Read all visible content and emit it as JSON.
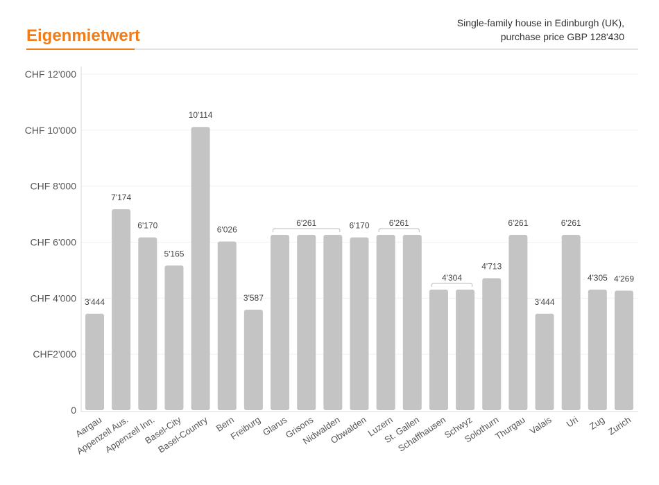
{
  "header": {
    "title": "Eigenmietwert",
    "subtitle_line1": "Single-family house in Edinburgh (UK),",
    "subtitle_line2": "purchase price GBP 128'430"
  },
  "colors": {
    "accent": "#f07d1a",
    "bar": "#c4c4c4",
    "rule": "#d8d8d8"
  },
  "chart_data": {
    "type": "bar",
    "title": "",
    "xlabel": "",
    "ylabel": "",
    "ylim": [
      0,
      12000
    ],
    "grid": true,
    "yticks": [
      {
        "value": 0,
        "label": "0"
      },
      {
        "value": 2000,
        "label": "CHF2'000"
      },
      {
        "value": 4000,
        "label": "CHF 4'000"
      },
      {
        "value": 6000,
        "label": "CHF 6'000"
      },
      {
        "value": 8000,
        "label": "CHF 8'000"
      },
      {
        "value": 10000,
        "label": "CHF 10'000"
      },
      {
        "value": 12000,
        "label": "CHF 12'000"
      }
    ],
    "categories": [
      "Aargau",
      "Appenzell Aus.",
      "Appenzell Inn.",
      "Basel-City",
      "Basel-Country",
      "Bern",
      "Freiburg",
      "Glarus",
      "Grisons",
      "Nidwalden",
      "Obwalden",
      "Luzern",
      "St. Gallen",
      "Schaffhausen",
      "Schwyz",
      "Solothurn",
      "Thurgau",
      "Valais",
      "Uri",
      "Zug",
      "Zurich"
    ],
    "values": [
      3444,
      7174,
      6170,
      5165,
      10114,
      6026,
      3587,
      6261,
      6261,
      6261,
      6170,
      6261,
      6261,
      4304,
      4304,
      4713,
      6261,
      3444,
      6261,
      4305,
      4269
    ],
    "labels": [
      {
        "text": "3'444",
        "from": 0,
        "to": 0
      },
      {
        "text": "7'174",
        "from": 1,
        "to": 1
      },
      {
        "text": "6'170",
        "from": 2,
        "to": 2
      },
      {
        "text": "5'165",
        "from": 3,
        "to": 3
      },
      {
        "text": "10'114",
        "from": 4,
        "to": 4
      },
      {
        "text": "6'026",
        "from": 5,
        "to": 5
      },
      {
        "text": "3'587",
        "from": 6,
        "to": 6
      },
      {
        "text": "6'261",
        "from": 7,
        "to": 9
      },
      {
        "text": "6'170",
        "from": 10,
        "to": 10
      },
      {
        "text": "6'261",
        "from": 11,
        "to": 12
      },
      {
        "text": "4'304",
        "from": 13,
        "to": 14
      },
      {
        "text": "4'713",
        "from": 15,
        "to": 15
      },
      {
        "text": "6'261",
        "from": 16,
        "to": 16
      },
      {
        "text": "3'444",
        "from": 17,
        "to": 17
      },
      {
        "text": "6'261",
        "from": 18,
        "to": 18
      },
      {
        "text": "4'305",
        "from": 19,
        "to": 19
      },
      {
        "text": "4'269",
        "from": 20,
        "to": 20
      }
    ]
  }
}
